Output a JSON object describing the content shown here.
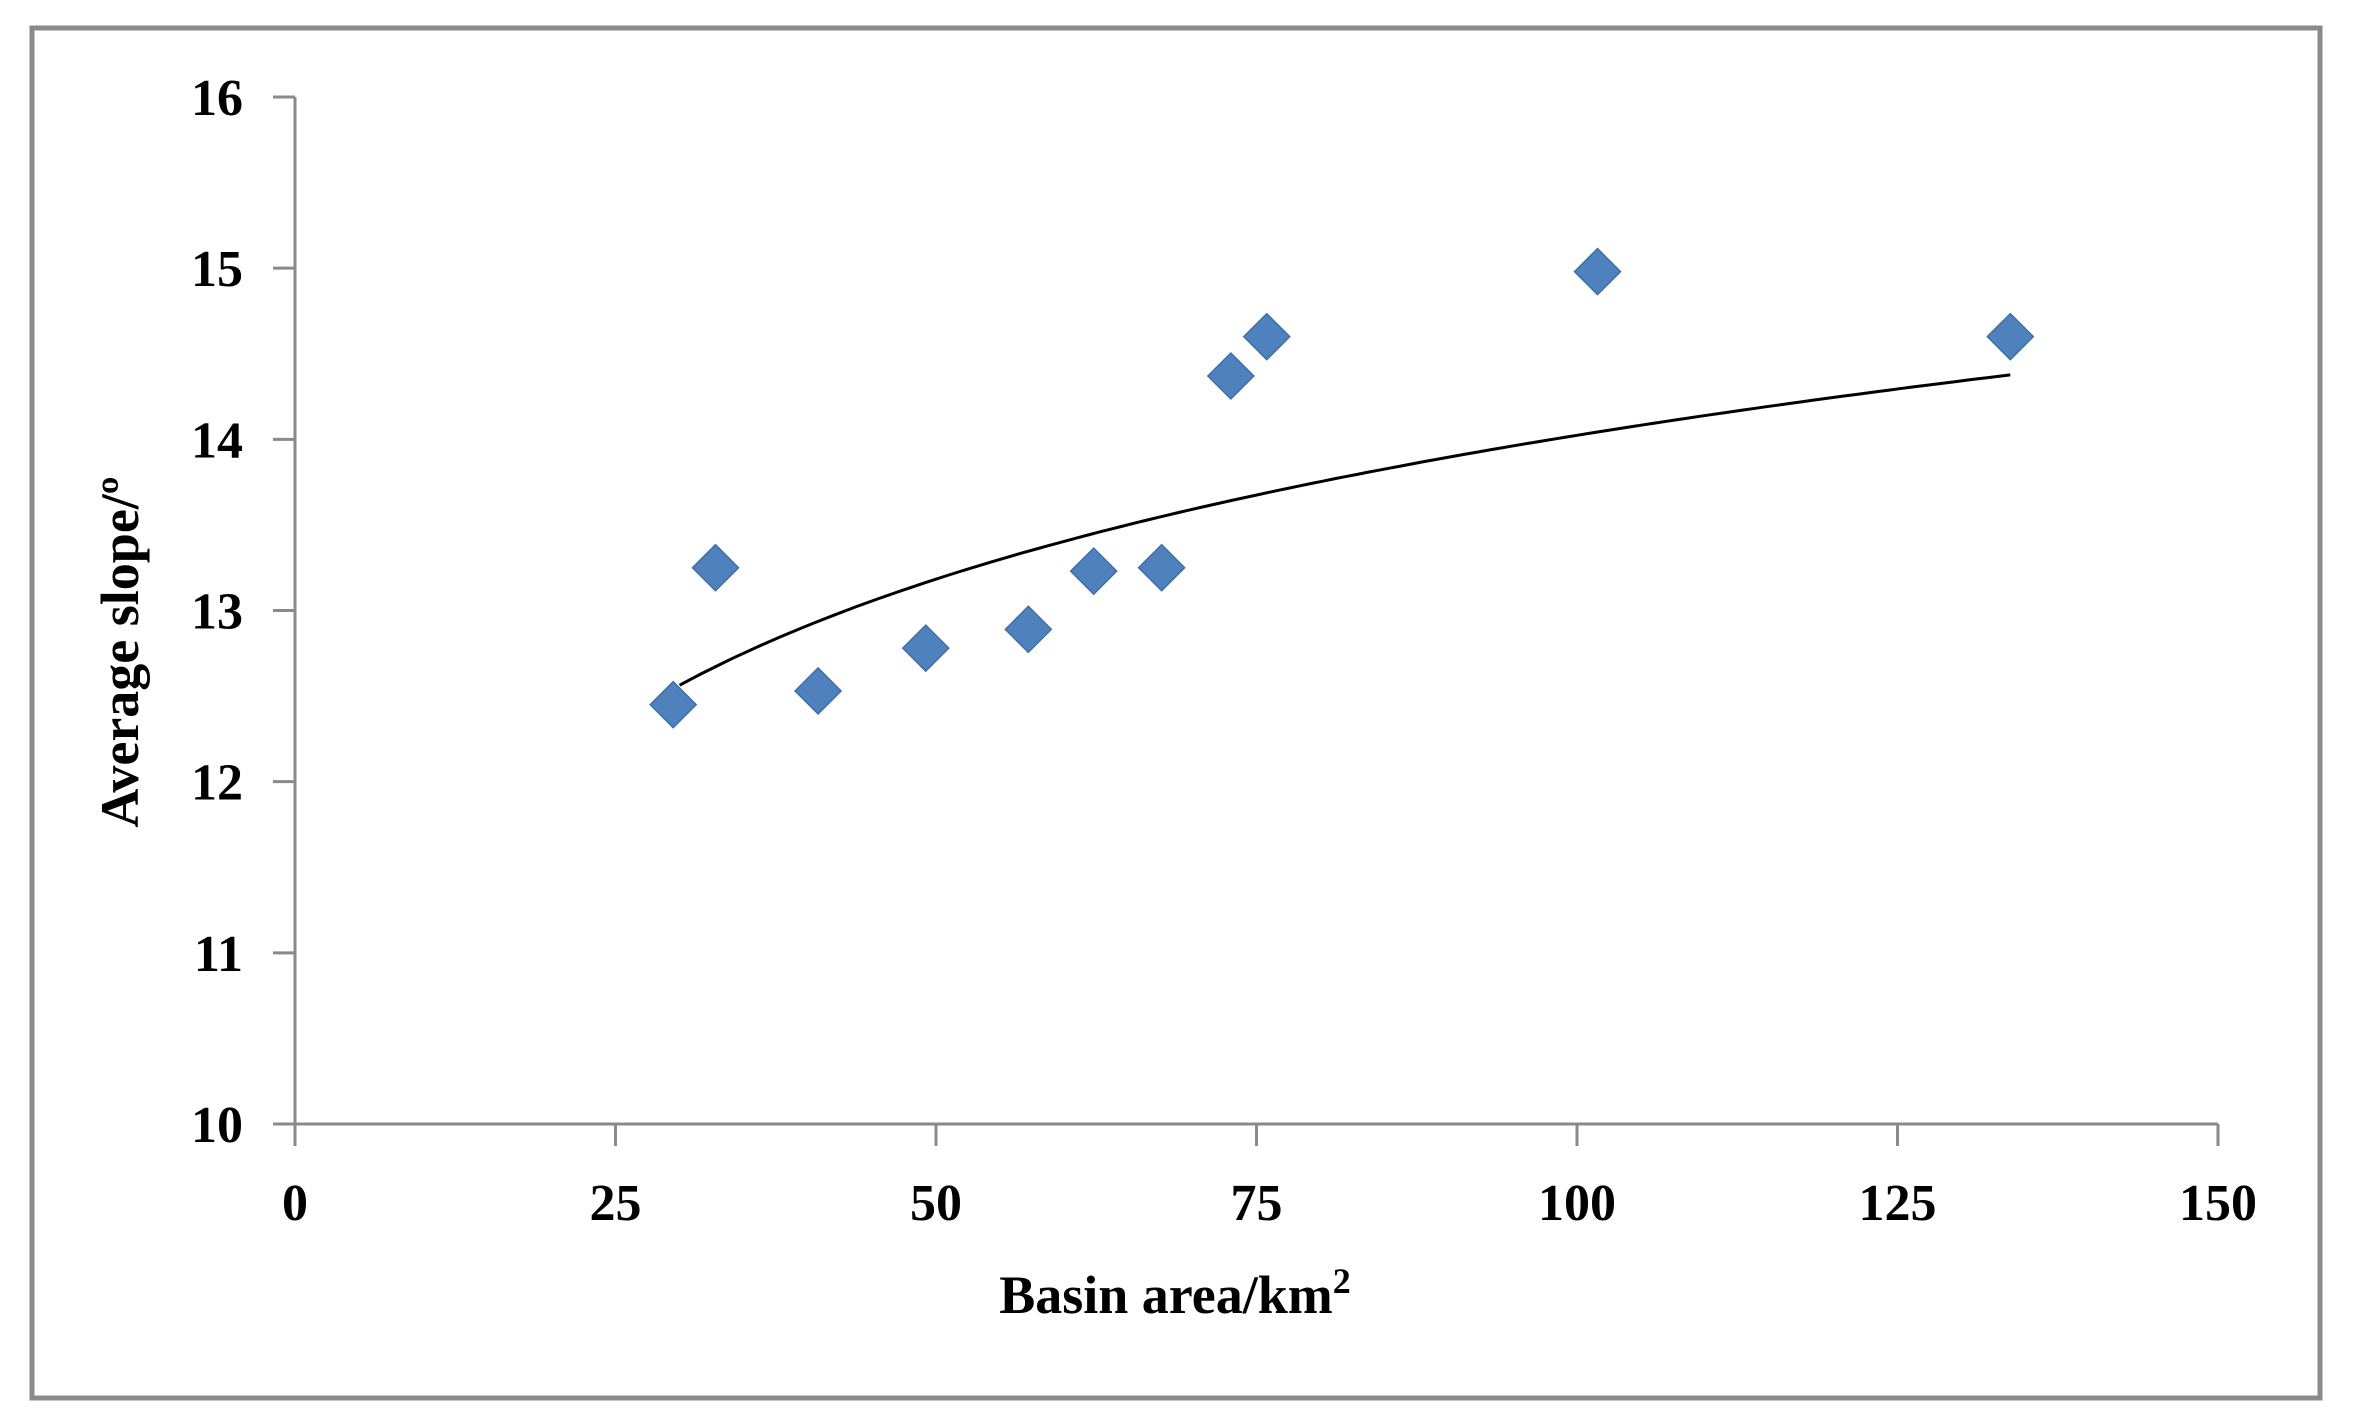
{
  "chart_data": {
    "type": "scatter",
    "title": "",
    "xlabel": "Basin area/km",
    "xlabel_superscript": "2",
    "ylabel": "Average slope/º",
    "xlim": [
      0,
      150
    ],
    "ylim": [
      10,
      16
    ],
    "xticks": [
      "0",
      "25",
      "50",
      "75",
      "100",
      "125",
      "150"
    ],
    "yticks": [
      "10",
      "11",
      "12",
      "13",
      "14",
      "15",
      "16"
    ],
    "grid": false,
    "legend": "none",
    "series": [
      {
        "marker": "diamond",
        "color": "#4f81bd",
        "points": [
          {
            "x": 29.5,
            "y": 12.45
          },
          {
            "x": 32.8,
            "y": 13.25
          },
          {
            "x": 40.8,
            "y": 12.53
          },
          {
            "x": 49.2,
            "y": 12.78
          },
          {
            "x": 57.2,
            "y": 12.89
          },
          {
            "x": 62.3,
            "y": 13.23
          },
          {
            "x": 67.6,
            "y": 13.25
          },
          {
            "x": 73.0,
            "y": 14.37
          },
          {
            "x": 75.8,
            "y": 14.6
          },
          {
            "x": 101.6,
            "y": 14.98
          },
          {
            "x": 133.8,
            "y": 14.6
          }
        ]
      }
    ],
    "trendline": {
      "type": "logarithmic",
      "color": "#000000",
      "a": 1.2125,
      "b": 8.4398,
      "x_range": [
        30,
        133.8
      ]
    }
  }
}
